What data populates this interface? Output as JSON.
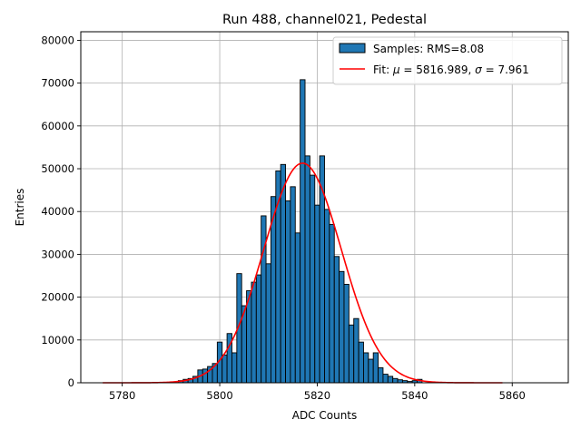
{
  "chart_data": {
    "type": "bar",
    "title": "Run 488, channel021, Pedestal",
    "xlabel": "ADC Counts",
    "ylabel": "Entries",
    "xlim": [
      5771.5,
      5871.5
    ],
    "ylim": [
      0,
      82000
    ],
    "grid": true,
    "legend_position": "top-right",
    "x_ticks": [
      5780,
      5800,
      5820,
      5840,
      5860
    ],
    "y_ticks": [
      0,
      10000,
      20000,
      30000,
      40000,
      50000,
      60000,
      70000,
      80000
    ],
    "bin_width": 1,
    "histogram": {
      "name": "Samples: RMS=8.08",
      "color": "#1f77b4",
      "edge_color": "#000000",
      "bin_centers": [
        5792,
        5793,
        5794,
        5795,
        5796,
        5797,
        5798,
        5799,
        5800,
        5801,
        5802,
        5803,
        5804,
        5805,
        5806,
        5807,
        5808,
        5809,
        5810,
        5811,
        5812,
        5813,
        5814,
        5815,
        5816,
        5817,
        5818,
        5819,
        5820,
        5821,
        5822,
        5823,
        5824,
        5825,
        5826,
        5827,
        5828,
        5829,
        5830,
        5831,
        5832,
        5833,
        5834,
        5835,
        5836,
        5837,
        5838,
        5839,
        5840,
        5841
      ],
      "values": [
        500,
        800,
        1000,
        1500,
        3000,
        3200,
        3800,
        4500,
        9500,
        6500,
        11500,
        7000,
        25500,
        18000,
        21500,
        23500,
        25200,
        39000,
        27800,
        43500,
        49500,
        51000,
        42500,
        45800,
        35000,
        70800,
        53000,
        48500,
        41500,
        53000,
        40500,
        37000,
        29500,
        26000,
        23000,
        13500,
        15000,
        9500,
        7000,
        5500,
        7000,
        3500,
        2000,
        1500,
        1000,
        700,
        500,
        300,
        500,
        800
      ]
    },
    "fit": {
      "name_prefix": "Fit: ",
      "name_mu": "μ",
      "name_middle": " = 5816.989, ",
      "name_sigma": "σ",
      "name_suffix": " = 7.961",
      "color": "#ff0000",
      "mu": 5816.989,
      "sigma": 7.961,
      "amplitude": 51300,
      "x_range": [
        5776,
        5858
      ]
    }
  }
}
